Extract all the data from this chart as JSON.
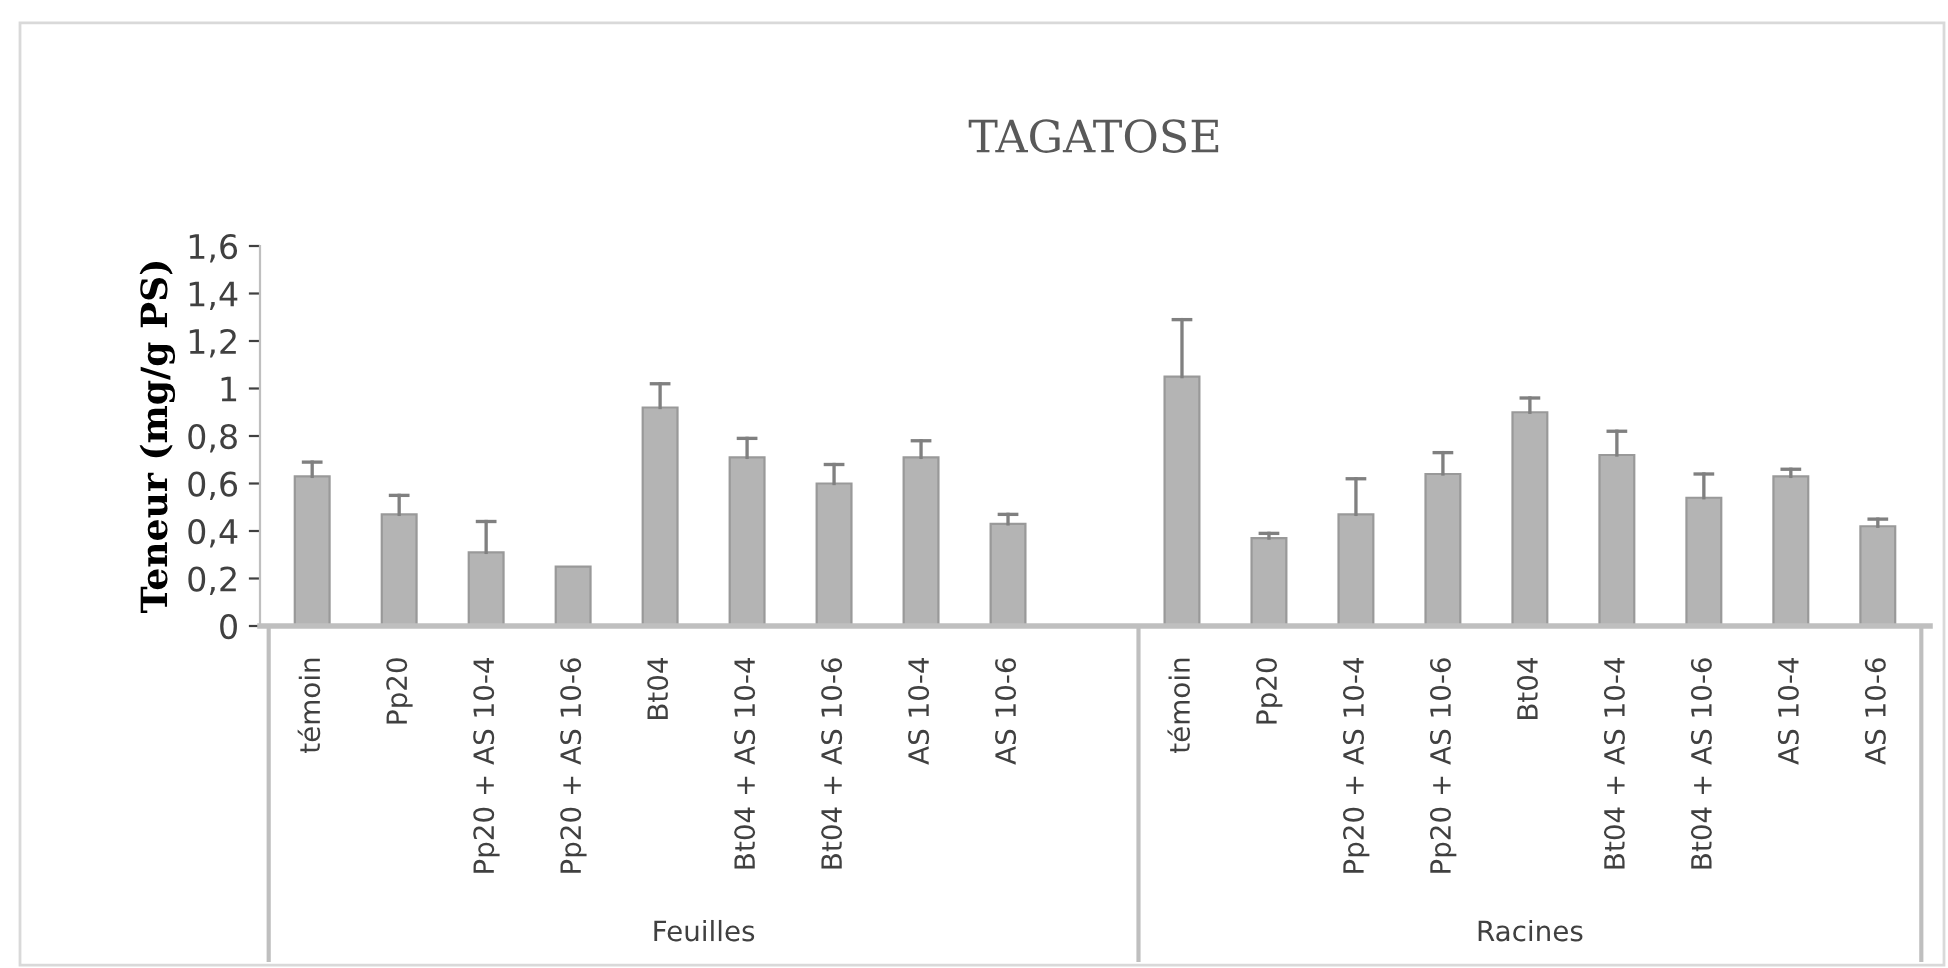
{
  "chart_data": {
    "type": "bar",
    "title": "TAGATOSE",
    "ylabel": "Teneur (mg/g PS)",
    "categories": [
      "témoin",
      "Pp20",
      "Pp20 + AS 10-4",
      "Pp20 + AS 10-6",
      "Bt04",
      "Bt04 + AS 10-4",
      "Bt04 + AS 10-6",
      "AS 10-4",
      "AS 10-6",
      null,
      "témoin",
      "Pp20",
      "Pp20 + AS 10-4",
      "Pp20 + AS 10-6",
      "Bt04",
      "Bt04 + AS 10-4",
      "Bt04 + AS 10-6",
      "AS 10-4",
      "AS 10-6"
    ],
    "values": [
      0.63,
      0.47,
      0.31,
      0.25,
      0.92,
      0.71,
      0.6,
      0.71,
      0.43,
      null,
      1.05,
      0.37,
      0.47,
      0.64,
      0.9,
      0.72,
      0.54,
      0.63,
      0.42
    ],
    "errors": [
      [
        0.63,
        0.69
      ],
      [
        0.47,
        0.55
      ],
      [
        0.31,
        0.44
      ],
      null,
      [
        0.92,
        1.02
      ],
      [
        0.71,
        0.79
      ],
      [
        0.6,
        0.68
      ],
      [
        0.71,
        0.78
      ],
      [
        0.43,
        0.47
      ],
      null,
      [
        1.05,
        1.29
      ],
      [
        0.37,
        0.39
      ],
      [
        0.47,
        0.62
      ],
      [
        0.64,
        0.73
      ],
      [
        0.9,
        0.96
      ],
      [
        0.72,
        0.82
      ],
      [
        0.54,
        0.64
      ],
      [
        0.63,
        0.66
      ],
      [
        0.42,
        0.45
      ]
    ],
    "color": "#b4b4b4",
    "ylim": [
      0,
      1.6
    ],
    "yticks": [
      0,
      {
        "value": 0.2,
        "label": "0,2"
      },
      {
        "value": 0.4,
        "label": "0,4"
      },
      {
        "value": 0.6,
        "label": "0,6"
      },
      {
        "value": 0.8,
        "label": "0,8"
      },
      {
        "value": 1,
        "label": "1"
      },
      {
        "value": 1.2,
        "label": "1,2"
      },
      {
        "value": 1.4,
        "label": "1,4"
      },
      {
        "value": 1.6,
        "label": "1,6"
      }
    ],
    "annotations": [
      "Feuilles",
      "Racines"
    ],
    "grid": false
  }
}
